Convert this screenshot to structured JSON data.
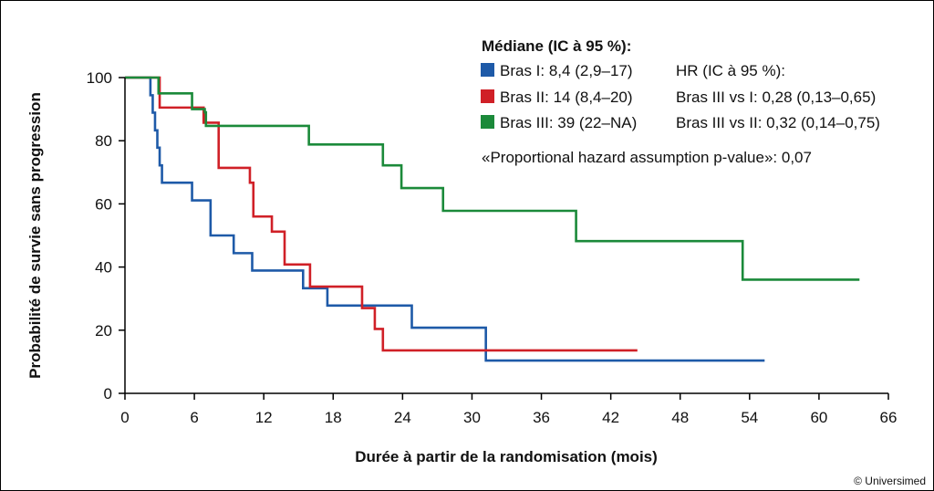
{
  "chart_data": {
    "type": "line",
    "xlabel": "Durée à partir de la randomisation (mois)",
    "ylabel": "Probabilité de survie sans progression",
    "xlim": [
      0,
      66
    ],
    "ylim": [
      0,
      100
    ],
    "xticks": [
      0,
      6,
      12,
      18,
      24,
      30,
      36,
      42,
      48,
      54,
      60,
      66
    ],
    "yticks": [
      0,
      20,
      40,
      60,
      80,
      100
    ],
    "grid": false,
    "legend_title": "Médiane (IC à 95 %):",
    "series": [
      {
        "name": "Bras I: 8,4 (2,9–17)",
        "color": "#1e5aa8",
        "step_x": [
          0,
          2.2,
          2.4,
          2.6,
          2.8,
          3.0,
          3.2,
          5.8,
          7.4,
          9.4,
          11.0,
          15.4,
          17.5,
          24.8,
          31.2,
          55.3
        ],
        "step_y": [
          100,
          94.4,
          88.9,
          83.3,
          77.8,
          72.2,
          66.7,
          61.1,
          50.0,
          44.4,
          38.9,
          33.3,
          27.8,
          20.8,
          10.4,
          10.4
        ]
      },
      {
        "name": "Bras II: 14 (8,4–20)",
        "color": "#d02027",
        "step_x": [
          0,
          3.0,
          6.8,
          8.1,
          10.8,
          11.1,
          12.7,
          13.8,
          16.0,
          20.5,
          21.6,
          22.3,
          44.3
        ],
        "step_y": [
          100,
          90.5,
          85.7,
          71.4,
          66.7,
          56.0,
          51.2,
          40.8,
          33.8,
          27.0,
          20.4,
          13.6,
          13.6
        ]
      },
      {
        "name": "Bras III: 39 (22–NA)",
        "color": "#1b8a3a",
        "step_x": [
          0,
          2.9,
          5.8,
          6.9,
          7.0,
          15.9,
          22.3,
          23.9,
          27.5,
          39.0,
          53.4,
          63.5
        ],
        "step_y": [
          100,
          95,
          90,
          89,
          84.7,
          78.8,
          72.2,
          65.0,
          57.8,
          48.2,
          36.0,
          36.0
        ]
      }
    ],
    "annotations": [
      "HR (IC à 95 %):",
      "Bras III vs I: 0,28 (0,13–0,65)",
      "Bras III vs II: 0,32 (0,14–0,75)",
      "«Proportional hazard assumption p-value»: 0,07"
    ],
    "credit": "© Universimed"
  }
}
